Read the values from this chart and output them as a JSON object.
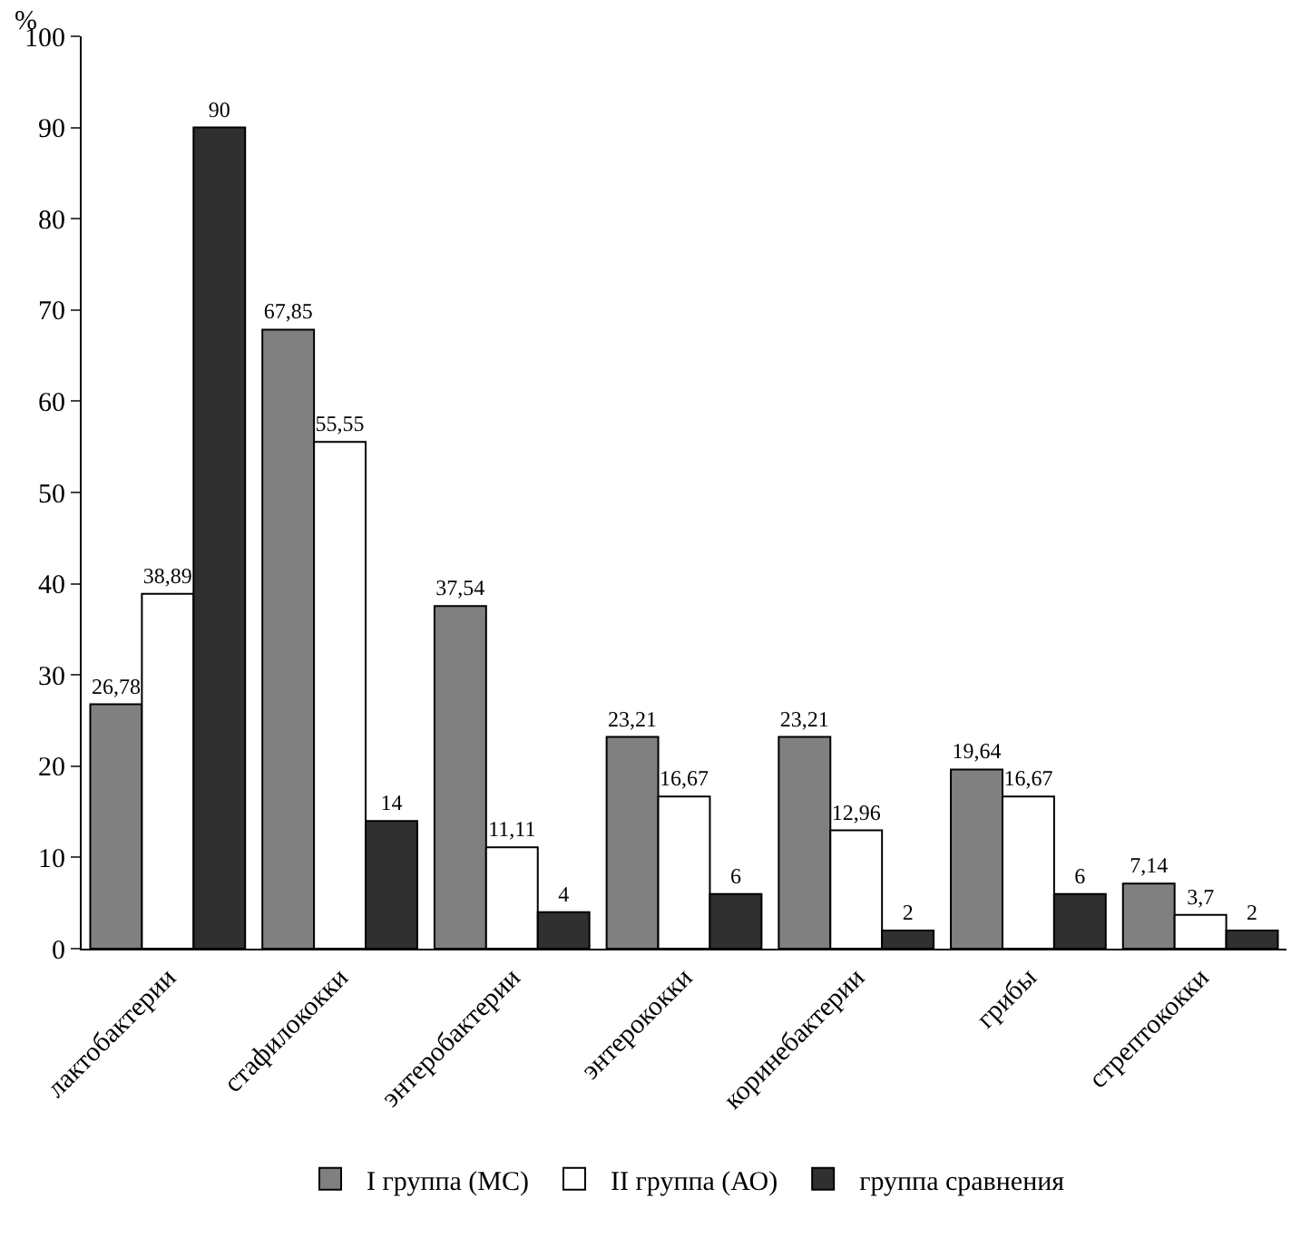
{
  "chart_data": {
    "type": "bar",
    "ylabel": "%",
    "categories": [
      "лактобактерии",
      "стафилококки",
      "энтеробактерии",
      "энтерококки",
      "коринебактерии",
      "грибы",
      "стрептококки"
    ],
    "series": [
      {
        "name": "I группа (МС)",
        "color": "#808080",
        "values": [
          26.78,
          67.85,
          37.54,
          23.21,
          23.21,
          19.64,
          7.14
        ],
        "value_labels": [
          "26,78",
          "67,85",
          "37,54",
          "23,21",
          "23,21",
          "19,64",
          "7,14"
        ]
      },
      {
        "name": "II группа (АО)",
        "color": "#ffffff",
        "values": [
          38.89,
          55.55,
          11.11,
          16.67,
          12.96,
          16.67,
          3.7
        ],
        "value_labels": [
          "38,89",
          "55,55",
          "11,11",
          "16,67",
          "12,96",
          "16,67",
          "3,7"
        ]
      },
      {
        "name": "группа сравнения",
        "color": "#303030",
        "values": [
          90,
          14,
          4,
          6,
          2,
          6,
          2
        ],
        "value_labels": [
          "90",
          "14",
          "4",
          "6",
          "2",
          "6",
          "2"
        ]
      }
    ],
    "ylim": [
      0,
      100
    ],
    "yticks": [
      0,
      10,
      20,
      30,
      40,
      50,
      60,
      70,
      80,
      90,
      100
    ],
    "legend": "bottom"
  }
}
